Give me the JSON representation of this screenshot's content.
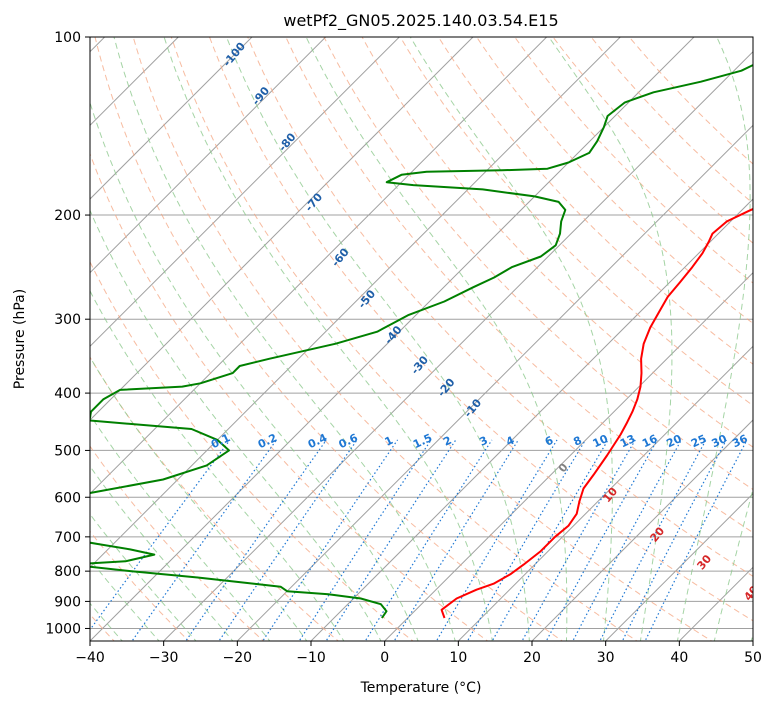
{
  "chart_data": {
    "type": "line",
    "title": "wetPf2_GN05.2025.140.03.54.E15",
    "xlabel": "Temperature (°C)",
    "ylabel": "Pressure (hPa)",
    "xlim": [
      -40,
      50
    ],
    "ylim": [
      1050,
      100
    ],
    "y_scale": "log",
    "grid": true,
    "skew_degrees": 45,
    "x_ticks": [
      "−40",
      "−30",
      "−20",
      "−10",
      "0",
      "10",
      "20",
      "30",
      "40",
      "50"
    ],
    "y_ticks": [
      "1000",
      "900",
      "800",
      "700",
      "600",
      "500",
      "400",
      "300",
      "200",
      "100"
    ],
    "series": [
      {
        "color": "#ff0000",
        "points": [
          [
            5.0,
            960
          ],
          [
            3.5,
            930
          ],
          [
            4.0,
            890
          ],
          [
            5.5,
            860
          ],
          [
            7.0,
            840
          ],
          [
            8.0,
            810
          ],
          [
            8.5,
            780
          ],
          [
            9.0,
            740
          ],
          [
            9.0,
            700
          ],
          [
            9.3,
            670
          ],
          [
            8.8,
            640
          ],
          [
            7.5,
            610
          ],
          [
            6.3,
            580
          ],
          [
            5.8,
            550
          ],
          [
            5.0,
            510
          ],
          [
            4.0,
            470
          ],
          [
            3.3,
            450
          ],
          [
            2.5,
            430
          ],
          [
            1.5,
            410
          ],
          [
            0.2,
            390
          ],
          [
            -1.5,
            370
          ],
          [
            -3.5,
            350
          ],
          [
            -5.2,
            330
          ],
          [
            -6.5,
            310
          ],
          [
            -7.5,
            290
          ],
          [
            -8.3,
            275
          ],
          [
            -8.6,
            260
          ],
          [
            -9.0,
            245
          ],
          [
            -9.5,
            232
          ],
          [
            -10.2,
            222
          ],
          [
            -10.8,
            215
          ],
          [
            -10.5,
            205
          ],
          [
            -9.0,
            197
          ],
          [
            -7.5,
            190
          ],
          [
            -6.5,
            183
          ],
          [
            -6.5,
            176
          ],
          [
            -8.5,
            168
          ],
          [
            -10.5,
            160
          ],
          [
            -13.0,
            150
          ],
          [
            -15.5,
            141
          ],
          [
            -18.0,
            133
          ],
          [
            -20.0,
            126
          ],
          [
            -21.5,
            120
          ],
          [
            -23.0,
            114
          ],
          [
            -25.0,
            107
          ],
          [
            -27.0,
            100
          ]
        ]
      },
      {
        "color": "#008000",
        "points": [
          [
            -3.5,
            960
          ],
          [
            -3.8,
            935
          ],
          [
            -5.5,
            910
          ],
          [
            -9.0,
            890
          ],
          [
            -14.0,
            875
          ],
          [
            -20.0,
            865
          ],
          [
            -21.5,
            850
          ],
          [
            -25.5,
            840
          ],
          [
            -34.0,
            820
          ],
          [
            -44.0,
            800
          ],
          [
            -53.0,
            780
          ],
          [
            -46.0,
            770
          ],
          [
            -43.0,
            750
          ],
          [
            -47.0,
            735
          ],
          [
            -52.0,
            720
          ],
          [
            -59.0,
            700
          ],
          [
            -63.0,
            690
          ],
          [
            -72.0,
            620
          ],
          [
            -70.0,
            600
          ],
          [
            -60.0,
            590
          ],
          [
            -52.0,
            560
          ],
          [
            -48.0,
            530
          ],
          [
            -47.0,
            500
          ],
          [
            -50.0,
            480
          ],
          [
            -55.0,
            460
          ],
          [
            -70.0,
            445
          ],
          [
            -71.0,
            430
          ],
          [
            -71.0,
            410
          ],
          [
            -70.0,
            395
          ],
          [
            -62.0,
            390
          ],
          [
            -60.0,
            385
          ],
          [
            -57.0,
            370
          ],
          [
            -57.0,
            360
          ],
          [
            -54.0,
            350
          ],
          [
            -47.0,
            330
          ],
          [
            -43.0,
            315
          ],
          [
            -42.0,
            305
          ],
          [
            -41.0,
            295
          ],
          [
            -38.0,
            280
          ],
          [
            -36.0,
            265
          ],
          [
            -34.5,
            255
          ],
          [
            -33.5,
            245
          ],
          [
            -31.0,
            235
          ],
          [
            -30.5,
            225
          ],
          [
            -31.5,
            215
          ],
          [
            -33.0,
            205
          ],
          [
            -34.0,
            196
          ],
          [
            -36.0,
            190
          ],
          [
            -40.0,
            186
          ],
          [
            -48.0,
            181
          ],
          [
            -58.0,
            178
          ],
          [
            -62.0,
            176
          ],
          [
            -61.0,
            171
          ],
          [
            -58.0,
            169
          ],
          [
            -48.0,
            168
          ],
          [
            -42.0,
            167
          ],
          [
            -40.0,
            163
          ],
          [
            -38.5,
            157
          ],
          [
            -39.0,
            150
          ],
          [
            -40.0,
            142
          ],
          [
            -41.0,
            136
          ],
          [
            -40.5,
            129
          ],
          [
            -38.0,
            124
          ],
          [
            -33.0,
            119
          ],
          [
            -29.0,
            114
          ],
          [
            -27.0,
            108
          ],
          [
            -25.0,
            100
          ]
        ]
      }
    ],
    "dry_adiabats_c": [
      -100,
      -90,
      -80,
      -70,
      -60,
      -50,
      -40,
      -30,
      -20,
      -10,
      0,
      10,
      20,
      30,
      40
    ],
    "moist_adiabat_labels": [
      "-100",
      "-90",
      "-80",
      "-70",
      "-60",
      "-50",
      "-40",
      "-30",
      "-20",
      "-10",
      "0",
      "10",
      "20",
      "30",
      "40"
    ],
    "mixing_ratio_labels": [
      "0.1",
      "0.2",
      "0.4",
      "0.6",
      "1",
      "1.5",
      "2",
      "3",
      "4",
      "6",
      "8",
      "10",
      "13",
      "16",
      "20",
      "25",
      "30",
      "36"
    ],
    "mixing_ratios": [
      0.1,
      0.2,
      0.4,
      0.6,
      1,
      1.5,
      2,
      3,
      4,
      6,
      8,
      10,
      13,
      16,
      20,
      25,
      30,
      36
    ],
    "colors": {
      "temperature": "#ff0000",
      "dewpoint": "#008000",
      "isotherm": "#a0a0a0",
      "dry_adiabat": "#f4a582",
      "moist_adiabat": "#8fc98f",
      "mixing_ratio": "#1f78d4",
      "moist_label_cold": "#1f5fa8",
      "moist_label_zero": "#808080",
      "moist_label_warm": "#d62728"
    }
  }
}
